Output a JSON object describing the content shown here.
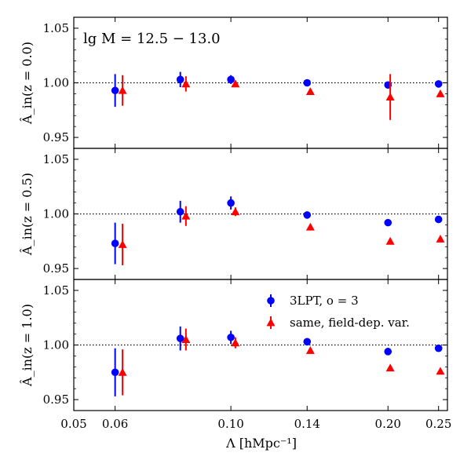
{
  "chart_data": {
    "type": "scatter",
    "xscale": "log",
    "xlabel": "Λ [hMpc⁻¹]",
    "xlim": [
      0.05,
      0.26
    ],
    "xticks": [
      0.05,
      0.06,
      0.1,
      0.14,
      0.2,
      0.25
    ],
    "xtick_labels": [
      "0.05",
      "0.06",
      "0.10",
      "0.14",
      "0.20",
      "0.25"
    ],
    "annotation": "lg M = 12.5 − 13.0",
    "legend": {
      "position": "upper-right of bottom panel",
      "entries": [
        {
          "name": "3LPT, o = 3",
          "color": "#0000ff",
          "marker": "circle"
        },
        {
          "name": "same, field-dep. var.",
          "color": "#ff0000",
          "marker": "triangle"
        }
      ]
    },
    "reference_line": 1.0,
    "panels": [
      {
        "ylabel": "Â_in(z = 0.0)",
        "ylim": [
          0.94,
          1.06
        ],
        "yticks": [
          0.95,
          1.0,
          1.05
        ],
        "ytick_labels": [
          "0.95",
          "1.00",
          "1.05"
        ],
        "series": [
          {
            "name": "3LPT, o = 3",
            "color": "#0000ff",
            "marker": "circle",
            "x": [
              0.06,
              0.08,
              0.1,
              0.14,
              0.2,
              0.25
            ],
            "y": [
              0.993,
              1.003,
              1.003,
              1.0,
              0.998,
              0.999
            ],
            "err": [
              0.015,
              0.007,
              0.004,
              0.0,
              0.0,
              0.0
            ]
          },
          {
            "name": "same, field-dep. var.",
            "color": "#ff0000",
            "marker": "triangle",
            "x": [
              0.062,
              0.082,
              0.102,
              0.142,
              0.202,
              0.252
            ],
            "y": [
              0.993,
              0.999,
              0.999,
              0.992,
              0.987,
              0.99
            ],
            "err": [
              0.014,
              0.007,
              0.003,
              0.0,
              0.021,
              0.0
            ]
          }
        ]
      },
      {
        "ylabel": "Â_in(z = 0.5)",
        "ylim": [
          0.94,
          1.06
        ],
        "yticks": [
          0.95,
          1.0,
          1.05
        ],
        "ytick_labels": [
          "0.95",
          "1.00",
          "1.05"
        ],
        "series": [
          {
            "name": "3LPT, o = 3",
            "color": "#0000ff",
            "marker": "circle",
            "x": [
              0.06,
              0.08,
              0.1,
              0.14,
              0.2,
              0.25
            ],
            "y": [
              0.973,
              1.002,
              1.01,
              0.999,
              0.992,
              0.995
            ],
            "err": [
              0.019,
              0.01,
              0.006,
              0.0,
              0.0,
              0.0
            ]
          },
          {
            "name": "same, field-dep. var.",
            "color": "#ff0000",
            "marker": "triangle",
            "x": [
              0.062,
              0.082,
              0.102,
              0.142,
              0.202,
              0.252
            ],
            "y": [
              0.972,
              0.998,
              1.002,
              0.988,
              0.975,
              0.977
            ],
            "err": [
              0.019,
              0.009,
              0.004,
              0.0,
              0.0,
              0.0
            ]
          }
        ]
      },
      {
        "ylabel": "Â_in(z = 1.0)",
        "ylim": [
          0.94,
          1.06
        ],
        "yticks": [
          0.95,
          1.0,
          1.05
        ],
        "ytick_labels": [
          "0.95",
          "1.00",
          "1.05"
        ],
        "series": [
          {
            "name": "3LPT, o = 3",
            "color": "#0000ff",
            "marker": "circle",
            "x": [
              0.06,
              0.08,
              0.1,
              0.14,
              0.2,
              0.25
            ],
            "y": [
              0.975,
              1.006,
              1.007,
              1.003,
              0.994,
              0.997
            ],
            "err": [
              0.022,
              0.011,
              0.006,
              0.0,
              0.0,
              0.0
            ]
          },
          {
            "name": "same, field-dep. var.",
            "color": "#ff0000",
            "marker": "triangle",
            "x": [
              0.062,
              0.082,
              0.102,
              0.142,
              0.202,
              0.252
            ],
            "y": [
              0.975,
              1.005,
              1.002,
              0.995,
              0.979,
              0.976
            ],
            "err": [
              0.021,
              0.01,
              0.005,
              0.0,
              0.0,
              0.0
            ]
          }
        ]
      }
    ]
  }
}
